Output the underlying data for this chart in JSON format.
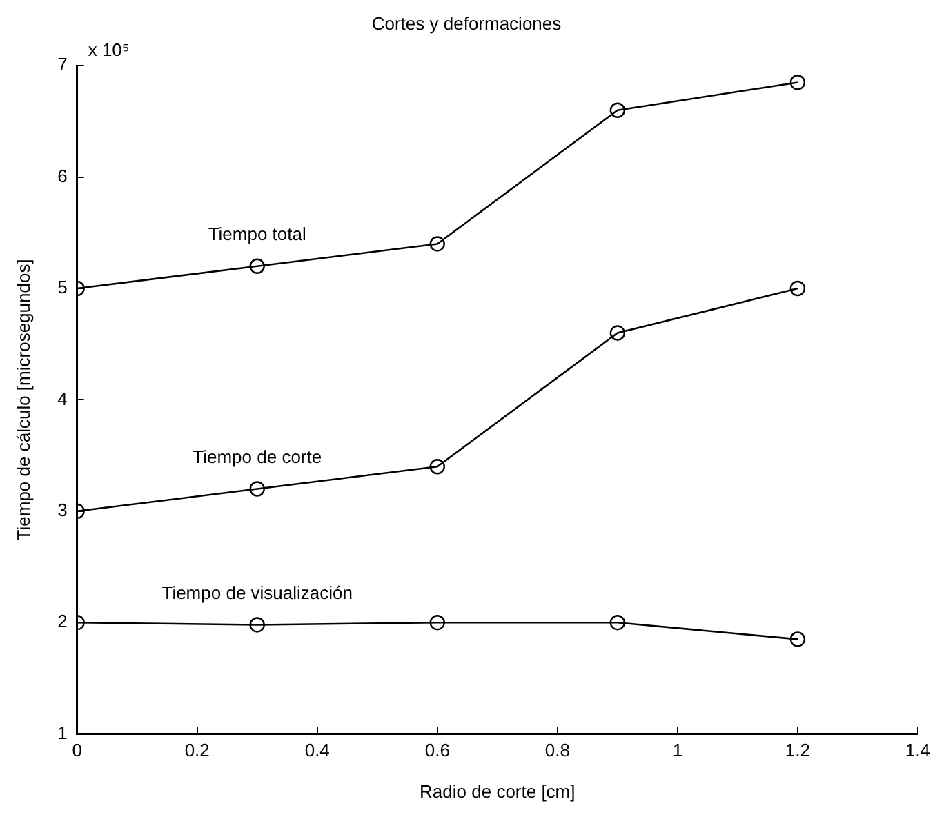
{
  "chart_data": {
    "type": "line",
    "title": "Cortes y deformaciones",
    "xlabel": "Radio de corte [cm]",
    "ylabel": "Tiempo de cálculo [microsegundos]",
    "annotations": [
      "x 10⁵"
    ],
    "x": [
      0,
      0.3,
      0.6,
      0.9,
      1.2
    ],
    "series": [
      {
        "name": "Tiempo total",
        "color": "#000000",
        "values": [
          5.0,
          5.2,
          5.4,
          6.6,
          6.85
        ]
      },
      {
        "name": "Tiempo de corte",
        "color": "#000000",
        "values": [
          3.0,
          3.2,
          3.4,
          4.6,
          5.0
        ]
      },
      {
        "name": "Tiempo de visualización",
        "color": "#000000",
        "values": [
          2.0,
          1.98,
          2.0,
          2.0,
          1.85
        ]
      }
    ],
    "xlim": [
      0,
      1.4
    ],
    "xticks": [
      0,
      0.2,
      0.4,
      0.6,
      0.8,
      1,
      1.2,
      1.4
    ],
    "ylim": [
      1,
      7
    ],
    "yticks": [
      1,
      2,
      3,
      4,
      5,
      6,
      7
    ],
    "grid": false,
    "legend": false,
    "marker": "circle",
    "line_style": "solid"
  }
}
